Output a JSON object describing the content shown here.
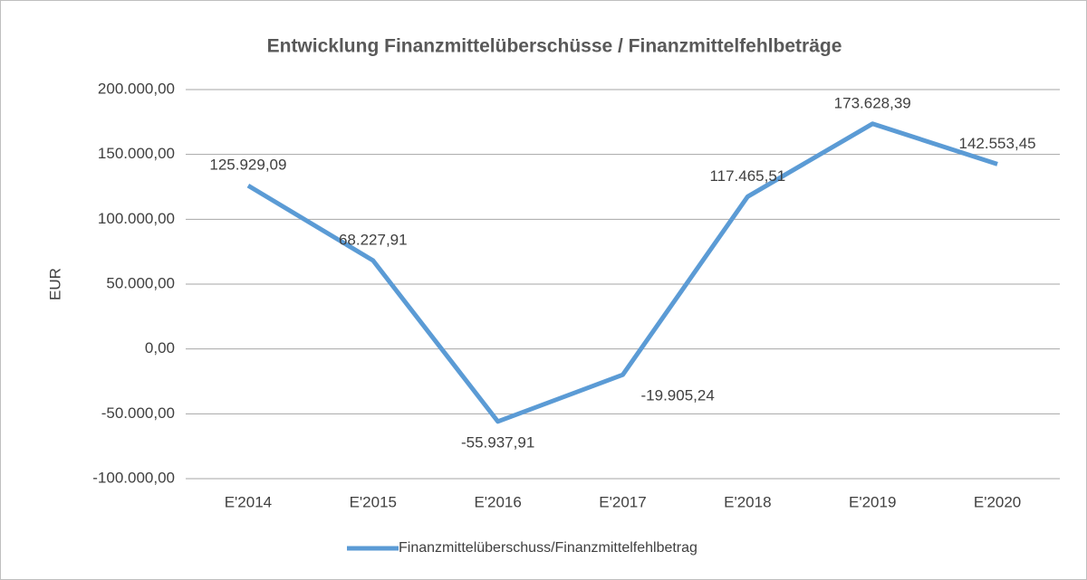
{
  "chart_data": {
    "type": "line",
    "title": "Entwicklung Finanzmittelüberschüsse / Finanzmittelfehlbeträge",
    "y_label": "EUR",
    "categories": [
      "E'2014",
      "E'2015",
      "E'2016",
      "E'2017",
      "E'2018",
      "E'2019",
      "E'2020"
    ],
    "series": [
      {
        "name": "Finanzmittelüberschuss/Finanzmittelfehlbetrag",
        "color": "#5b9bd5",
        "values": [
          125929.09,
          68227.91,
          -55937.91,
          -19905.24,
          117465.51,
          173628.39,
          142553.45
        ],
        "value_labels": [
          "125.929,09",
          "68.227,91",
          "-55.937,91",
          "-19.905,24",
          "117.465,51",
          "173.628,39",
          "142.553,45"
        ]
      }
    ],
    "ylim": [
      -100000,
      200000
    ],
    "yticks": [
      {
        "value": -100000,
        "label": "-100.000,00"
      },
      {
        "value": -50000,
        "label": "-50.000,00"
      },
      {
        "value": 0,
        "label": "0,00"
      },
      {
        "value": 50000,
        "label": "50.000,00"
      },
      {
        "value": 100000,
        "label": "100.000,00"
      },
      {
        "value": 150000,
        "label": "150.000,00"
      },
      {
        "value": 200000,
        "label": "200.000,00"
      }
    ],
    "grid": true,
    "legend": "bottom"
  }
}
